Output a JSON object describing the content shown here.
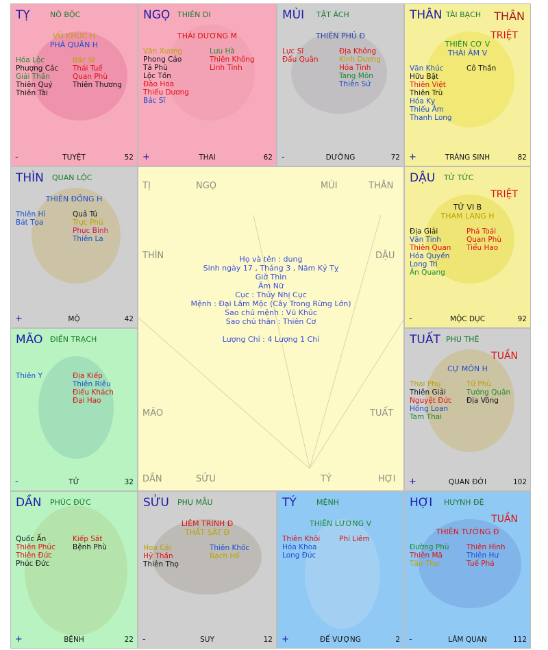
{
  "center": {
    "corner_labels": {
      "ty": "TỊ",
      "ngo": "NGỌ",
      "mui": "MÙI",
      "than": "THÂN",
      "thin": "THÌN",
      "dau": "DẬU",
      "mao": "MÃO",
      "tuat": "TUẤT",
      "dan": "DẦN",
      "suu": "SỬU",
      "ty2": "TÝ",
      "hoi": "HỢI"
    },
    "info": [
      "Họ và tên : dung",
      "Sinh ngày 17 , Tháng 3 , Năm Kỷ Tỵ",
      "Giờ Thìn",
      "Âm Nữ",
      "Cục : Thủy Nhị Cục",
      "Mệnh : Đại Lâm Mộc (Cây Trong Rừng Lớn)",
      "Sao chủ mệnh : Vũ Khúc",
      "Sao chủ thân : Thiên Cơ",
      "",
      "Lượng Chỉ : 4 Lượng 1 Chỉ"
    ]
  },
  "palaces": {
    "ty": {
      "name": "TỴ",
      "palace": "NÔ BỘC",
      "marker": "",
      "main": [
        {
          "t": "VŨ KHÚC H",
          "c": "c-yel"
        },
        {
          "t": "PHÁ QUÂN H",
          "c": "c-blue"
        }
      ],
      "left": [
        {
          "t": "Hóa Lộc",
          "c": "c-green"
        },
        {
          "t": "Phượng Các",
          "c": "c-blk"
        },
        {
          "t": "Giải Thần",
          "c": "c-green"
        },
        {
          "t": "Thiên Quý",
          "c": "c-blk"
        },
        {
          "t": "Thiên Tài",
          "c": "c-blk"
        }
      ],
      "right": [
        {
          "t": "Bác Sĩ",
          "c": "c-yel"
        },
        {
          "t": "Thái Tuế",
          "c": "c-red"
        },
        {
          "t": "Quan Phù",
          "c": "c-red"
        },
        {
          "t": "Thiên Thương",
          "c": "c-blk"
        }
      ],
      "sign": "-",
      "stage": "TUYỆT",
      "age": "52"
    },
    "ngo": {
      "name": "NGỌ",
      "palace": "THIÊN DI",
      "marker": "",
      "main": [
        {
          "t": "THÁI DƯƠNG M",
          "c": "c-red"
        }
      ],
      "left": [
        {
          "t": "Văn Xương",
          "c": "c-yel"
        },
        {
          "t": "Phong Cáo",
          "c": "c-blk"
        },
        {
          "t": "Tả Phù",
          "c": "c-blk"
        },
        {
          "t": "Lộc Tồn",
          "c": "c-blk"
        },
        {
          "t": "Đào Hoa",
          "c": "c-red"
        },
        {
          "t": "Thiếu Dương",
          "c": "c-red"
        },
        {
          "t": "Bác Sĩ",
          "c": "c-blue"
        }
      ],
      "right": [
        {
          "t": "Lưu Hà",
          "c": "c-green"
        },
        {
          "t": "Thiên Không",
          "c": "c-red"
        },
        {
          "t": "Linh Tinh",
          "c": "c-red"
        }
      ],
      "sign": "+",
      "stage": "THAI",
      "age": "62"
    },
    "mui": {
      "name": "MÙI",
      "palace": "TẬT ÁCH",
      "marker": "",
      "main": [
        {
          "t": "THIÊN PHỦ Đ",
          "c": "c-dblue"
        }
      ],
      "left": [
        {
          "t": "Lực Sĩ",
          "c": "c-red"
        },
        {
          "t": "Đẩu Quân",
          "c": "c-red"
        }
      ],
      "right": [
        {
          "t": "Địa Không",
          "c": "c-red"
        },
        {
          "t": "Kình Dương",
          "c": "c-yel"
        },
        {
          "t": "Hỏa Tinh",
          "c": "c-red"
        },
        {
          "t": "Tang Môn",
          "c": "c-green"
        },
        {
          "t": "Thiên Sứ",
          "c": "c-blue"
        }
      ],
      "sign": "-",
      "stage": "DƯỠNG",
      "age": "72"
    },
    "than": {
      "name": "THÂN",
      "palace": "TÀI BẠCH",
      "marker": "TRIỆT",
      "main": [
        {
          "t": "THIÊN CƠ V",
          "c": "c-green"
        },
        {
          "t": "THÁI ÂM V",
          "c": "c-blue"
        }
      ],
      "left": [
        {
          "t": "Văn Khúc",
          "c": "c-blue"
        },
        {
          "t": "Hữu Bật",
          "c": "c-blk"
        },
        {
          "t": "Thiên Việt",
          "c": "c-red"
        },
        {
          "t": "Thiên Trù",
          "c": "c-blk"
        },
        {
          "t": "Hóa Kỵ",
          "c": "c-blue"
        },
        {
          "t": "Thiếu Âm",
          "c": "c-blue"
        },
        {
          "t": "Thanh Long",
          "c": "c-blue"
        }
      ],
      "right": [
        {
          "t": "Cô Thần",
          "c": "c-blk"
        }
      ],
      "sign": "+",
      "stage": "TRÀNG SINH",
      "age": "82",
      "extra": "THÂN"
    },
    "thin": {
      "name": "THÌN",
      "palace": "QUAN LỘC",
      "marker": "",
      "main": [
        {
          "t": "THIÊN ĐỒNG H",
          "c": "c-blue"
        }
      ],
      "left": [
        {
          "t": "Thiên Hỉ",
          "c": "c-blue"
        },
        {
          "t": "Bát Tọa",
          "c": "c-blue"
        }
      ],
      "right": [
        {
          "t": "Quả Tú",
          "c": "c-blk"
        },
        {
          "t": "Trực Phù",
          "c": "c-yel"
        },
        {
          "t": "Phục Binh",
          "c": "c-mag"
        },
        {
          "t": "Thiên La",
          "c": "c-blue"
        }
      ],
      "sign": "+",
      "stage": "MỘ",
      "age": "42"
    },
    "dau": {
      "name": "DẬU",
      "palace": "TỬ TỨC",
      "marker": "TRIỆT",
      "main": [
        {
          "t": "TỬ VI B",
          "c": "c-blk"
        },
        {
          "t": "THAM LANG H",
          "c": "c-yel"
        }
      ],
      "left": [
        {
          "t": "Địa Giải",
          "c": "c-blk"
        },
        {
          "t": "Văn Tinh",
          "c": "c-blue"
        },
        {
          "t": "Thiên Quan",
          "c": "c-red"
        },
        {
          "t": "Hóa Quyền",
          "c": "c-blue"
        },
        {
          "t": "Long Trì",
          "c": "c-blue"
        },
        {
          "t": "Ân Quang",
          "c": "c-green"
        }
      ],
      "right": [
        {
          "t": "Phá Toái",
          "c": "c-red"
        },
        {
          "t": "Quan Phù",
          "c": "c-red"
        },
        {
          "t": "Tiểu Hao",
          "c": "c-red"
        }
      ],
      "sign": "-",
      "stage": "MỘC DỤC",
      "age": "92"
    },
    "mao": {
      "name": "MÃO",
      "palace": "ĐIỀN TRẠCH",
      "marker": "",
      "main": [],
      "left": [
        {
          "t": "Thiên Y",
          "c": "c-blue"
        }
      ],
      "right": [
        {
          "t": "Địa Kiếp",
          "c": "c-red"
        },
        {
          "t": "Thiên Riêu",
          "c": "c-blue"
        },
        {
          "t": "Điếu Khách",
          "c": "c-red"
        },
        {
          "t": "Đại Hao",
          "c": "c-red"
        }
      ],
      "sign": "-",
      "stage": "TỬ",
      "age": "32"
    },
    "tuat": {
      "name": "TUẤT",
      "palace": "PHU THÊ",
      "marker": "TUẦN",
      "main": [
        {
          "t": "CỰ MÔN H",
          "c": "c-blue"
        }
      ],
      "left": [
        {
          "t": "Thai Phụ",
          "c": "c-yel"
        },
        {
          "t": "Thiên Giải",
          "c": "c-blk"
        },
        {
          "t": "Nguyệt Đức",
          "c": "c-red"
        },
        {
          "t": "Hồng Loan",
          "c": "c-blue"
        },
        {
          "t": "Tam Thai",
          "c": "c-green"
        }
      ],
      "right": [
        {
          "t": "Tử Phù",
          "c": "c-yel"
        },
        {
          "t": "Tướng Quân",
          "c": "c-green"
        },
        {
          "t": "Địa Võng",
          "c": "c-blk"
        }
      ],
      "sign": "+",
      "stage": "QUAN ĐỚI",
      "age": "102"
    },
    "dan": {
      "name": "DẦN",
      "palace": "PHÚC ĐỨC",
      "marker": "",
      "main": [],
      "left": [
        {
          "t": "Quốc Ấn",
          "c": "c-blk"
        },
        {
          "t": "Thiên Phúc",
          "c": "c-red"
        },
        {
          "t": "Thiên Đức",
          "c": "c-red"
        },
        {
          "t": "Phúc Đức",
          "c": "c-blk"
        }
      ],
      "right": [
        {
          "t": "Kiếp Sát",
          "c": "c-red"
        },
        {
          "t": "Bệnh Phù",
          "c": "c-blk"
        }
      ],
      "sign": "+",
      "stage": "BỆNH",
      "age": "22"
    },
    "suu": {
      "name": "SỬU",
      "palace": "PHỤ MẪU",
      "marker": "",
      "main": [
        {
          "t": "LIÊM TRINH Đ",
          "c": "c-red"
        },
        {
          "t": "THẤT SÁT Đ",
          "c": "c-yel"
        }
      ],
      "left": [
        {
          "t": "Hoa Cái",
          "c": "c-yel"
        },
        {
          "t": "Hỷ Thần",
          "c": "c-red"
        },
        {
          "t": "Thiên Thọ",
          "c": "c-blk"
        }
      ],
      "right": [
        {
          "t": "Thiên Khốc",
          "c": "c-blue"
        },
        {
          "t": "Bạch Hổ",
          "c": "c-yel"
        }
      ],
      "sign": "-",
      "stage": "SUY",
      "age": "12"
    },
    "ty2": {
      "name": "TÝ",
      "palace": "MỆNH",
      "marker": "",
      "main": [
        {
          "t": "THIÊN LƯƠNG V",
          "c": "c-green"
        }
      ],
      "left": [
        {
          "t": "Thiên Khôi",
          "c": "c-red"
        },
        {
          "t": "Hóa Khoa",
          "c": "c-blue"
        },
        {
          "t": "Long Đức",
          "c": "c-blue"
        }
      ],
      "right": [
        {
          "t": "Phi Liêm",
          "c": "c-red"
        }
      ],
      "sign": "+",
      "stage": "ĐẾ VƯỢNG",
      "age": "2"
    },
    "hoi": {
      "name": "HỢI",
      "palace": "HUYNH ĐỆ",
      "marker": "TUẦN",
      "main": [
        {
          "t": "THIÊN TƯỚNG Đ",
          "c": "c-red"
        }
      ],
      "left": [
        {
          "t": "Đường Phù",
          "c": "c-green"
        },
        {
          "t": "Thiên Mã",
          "c": "c-red"
        },
        {
          "t": "Tấu Thư",
          "c": "c-yel"
        }
      ],
      "right": [
        {
          "t": "Thiên Hình",
          "c": "c-red"
        },
        {
          "t": "Thiên Hư",
          "c": "c-blue"
        },
        {
          "t": "Tuế Phá",
          "c": "c-red"
        }
      ],
      "sign": "-",
      "stage": "LÂM QUAN",
      "age": "112"
    }
  }
}
